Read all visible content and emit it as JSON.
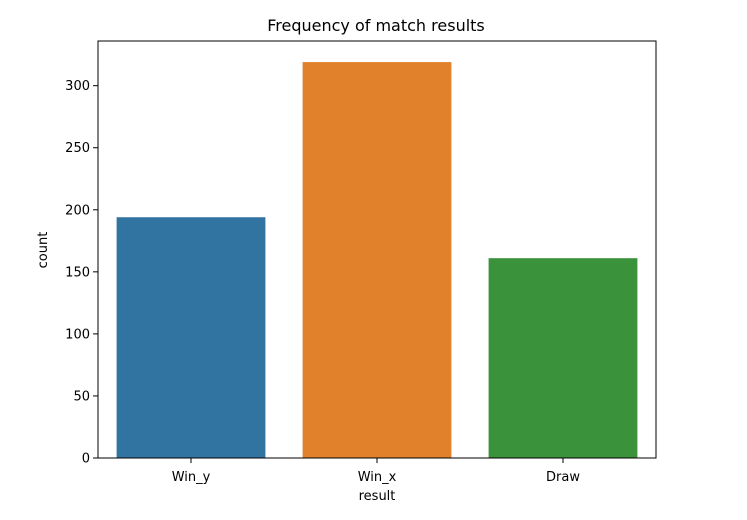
{
  "chart_data": {
    "type": "bar",
    "title": "Frequency of match results",
    "xlabel": "result",
    "ylabel": "count",
    "categories": [
      "Win_y",
      "Win_x",
      "Draw"
    ],
    "values": [
      194,
      319,
      161
    ],
    "colors": [
      "#3274a1",
      "#e1812c",
      "#3a923a"
    ],
    "ylim": [
      0,
      336
    ],
    "yticks": [
      0,
      50,
      100,
      150,
      200,
      250,
      300
    ],
    "grid": false,
    "legend": "none"
  }
}
